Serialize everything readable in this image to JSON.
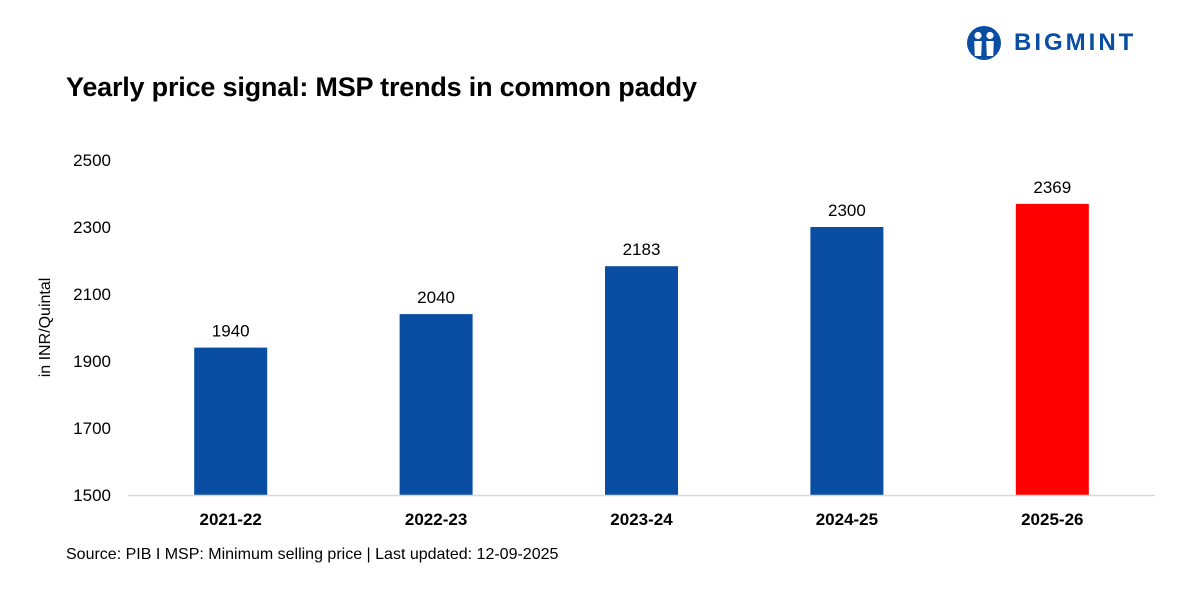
{
  "brand": {
    "name": "BIGMINT",
    "icon": "bigmint-logo-icon",
    "color": "#0a4ea3"
  },
  "colors": {
    "bar": "#0a4ea3",
    "highlight": "#ff0000",
    "axis": "#d9d9d9"
  },
  "footer": {
    "source": "Source: PIB I MSP: Minimum selling price | Last updated: 12-09-2025"
  },
  "chart_data": {
    "type": "bar",
    "title": "Yearly price signal: MSP trends in common paddy",
    "xlabel": "",
    "ylabel": "in INR/Quintal",
    "categories": [
      "2021-22",
      "2022-23",
      "2023-24",
      "2024-25",
      "2025-26"
    ],
    "values": [
      1940,
      2040,
      2183,
      2300,
      2369
    ],
    "highlight_category": "2025-26",
    "ylim": [
      1500,
      2500
    ],
    "yticks": [
      1500,
      1700,
      1900,
      2100,
      2300,
      2500
    ],
    "data_labels": true,
    "grid": false,
    "legend": "none"
  }
}
